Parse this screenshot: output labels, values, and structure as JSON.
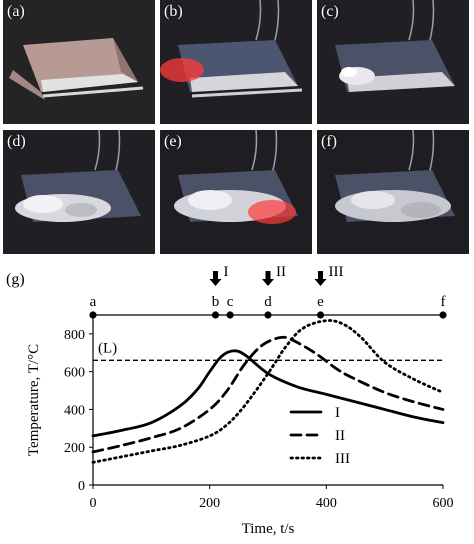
{
  "photos": [
    {
      "label": "(a)",
      "state": "intact"
    },
    {
      "label": "(b)",
      "state": "heating"
    },
    {
      "label": "(c)",
      "state": "melting"
    },
    {
      "label": "(d)",
      "state": "foaming"
    },
    {
      "label": "(e)",
      "state": "foaming-hot"
    },
    {
      "label": "(f)",
      "state": "cooled"
    }
  ],
  "colors": {
    "photo_bg": "#1b1b1d",
    "heat_glow": "#ff3b3b",
    "paper": "#b89a94",
    "paper_blue": "#4d5670"
  },
  "chart_panel_label": "(g)",
  "chart_data": {
    "type": "line",
    "xlabel": "Time, t/s",
    "ylabel": "Temperature, T/°C",
    "xlim": [
      0,
      600
    ],
    "ylim": [
      0,
      900
    ],
    "xticks": [
      0,
      200,
      400,
      600
    ],
    "yticks": [
      0,
      200,
      400,
      600,
      800
    ],
    "grid": false,
    "legend_position": "lower-right",
    "reference_line": {
      "label": "(L)",
      "y": 660,
      "style": "dashed"
    },
    "events": [
      {
        "label": "a",
        "x": 0
      },
      {
        "label": "b",
        "x": 210
      },
      {
        "label": "c",
        "x": 235
      },
      {
        "label": "d",
        "x": 300
      },
      {
        "label": "e",
        "x": 390
      },
      {
        "label": "f",
        "x": 600
      }
    ],
    "markers": [
      {
        "label": "I",
        "x": 210
      },
      {
        "label": "II",
        "x": 300
      },
      {
        "label": "III",
        "x": 390
      }
    ],
    "series": [
      {
        "name": "I",
        "style": "solid",
        "x": [
          0,
          50,
          100,
          150,
          180,
          200,
          220,
          240,
          260,
          300,
          350,
          400,
          450,
          500,
          550,
          600
        ],
        "y": [
          260,
          290,
          330,
          420,
          510,
          600,
          680,
          710,
          690,
          590,
          520,
          480,
          440,
          400,
          360,
          330
        ]
      },
      {
        "name": "II",
        "style": "dashed",
        "x": [
          0,
          50,
          100,
          150,
          200,
          230,
          260,
          290,
          320,
          340,
          380,
          420,
          450,
          500,
          550,
          600
        ],
        "y": [
          175,
          210,
          250,
          300,
          400,
          500,
          640,
          740,
          780,
          770,
          700,
          610,
          560,
          490,
          440,
          400
        ]
      },
      {
        "name": "III",
        "style": "dotted",
        "x": [
          0,
          50,
          100,
          150,
          200,
          230,
          260,
          300,
          330,
          360,
          400,
          430,
          460,
          500,
          550,
          600
        ],
        "y": [
          120,
          150,
          180,
          210,
          260,
          320,
          420,
          590,
          730,
          830,
          870,
          850,
          780,
          650,
          560,
          490
        ]
      }
    ]
  }
}
